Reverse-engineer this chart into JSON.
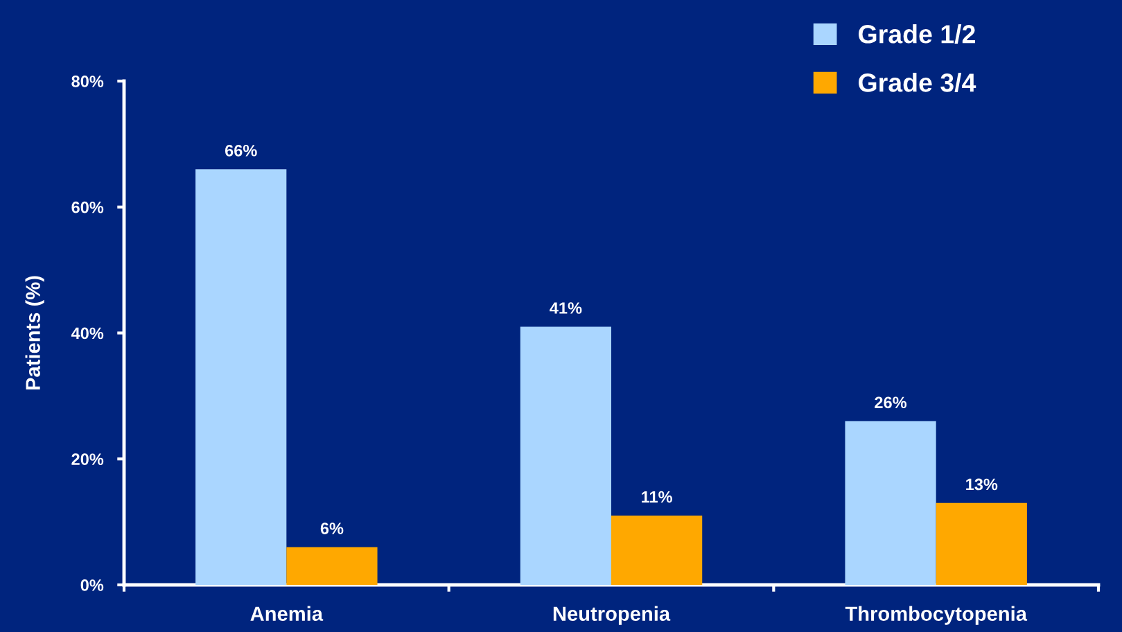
{
  "chart_data": {
    "type": "bar",
    "ylabel": "Patients (%)",
    "categories": [
      "Anemia",
      "Neutropenia",
      "Thrombocytopenia"
    ],
    "series": [
      {
        "name": "Grade 1/2",
        "color": "#aad6ff",
        "values": [
          66,
          41,
          26
        ],
        "value_labels": [
          "66%",
          "41%",
          "26%"
        ]
      },
      {
        "name": "Grade 3/4",
        "color": "#ffa800",
        "values": [
          6,
          11,
          13
        ],
        "value_labels": [
          "6%",
          "11%",
          "13%"
        ]
      }
    ],
    "ylim": [
      0,
      80
    ],
    "yticks": [
      {
        "value": 0,
        "label": "0%"
      },
      {
        "value": 20,
        "label": "20%"
      },
      {
        "value": 40,
        "label": "40%"
      },
      {
        "value": 60,
        "label": "60%"
      },
      {
        "value": 80,
        "label": "80%"
      }
    ],
    "legend": "top right"
  }
}
